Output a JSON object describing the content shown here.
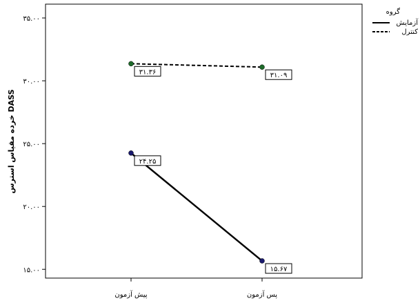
{
  "chart_data": {
    "type": "line",
    "categories": [
      "پیش آزمون",
      "پس آزمون"
    ],
    "ylabel": "خرده مقیاس استرس DASS",
    "xlabel": "",
    "ylim": [
      14.3,
      36.1
    ],
    "yticks": [
      15,
      20,
      25,
      30,
      35
    ],
    "ytick_labels": [
      "۱۵.۰۰",
      "۲۰.۰۰",
      "۲۵.۰۰",
      "۳۰.۰۰",
      "۳۵.۰۰"
    ],
    "grid": false,
    "legend": {
      "title": "گروه",
      "placement": "outside-top-right"
    },
    "series": [
      {
        "name": "آزمایش",
        "values": [
          24.25,
          15.67
        ],
        "value_labels": [
          "۲۴.۲۵",
          "۱۵.۶۷"
        ],
        "line_style": "solid",
        "marker_color": "#1a1a6e"
      },
      {
        "name": "کنترل",
        "values": [
          31.36,
          31.09
        ],
        "value_labels": [
          "۳۱.۳۶",
          "۳۱.۰۹"
        ],
        "line_style": "dashed",
        "marker_color": "#1e6b2a"
      }
    ]
  }
}
